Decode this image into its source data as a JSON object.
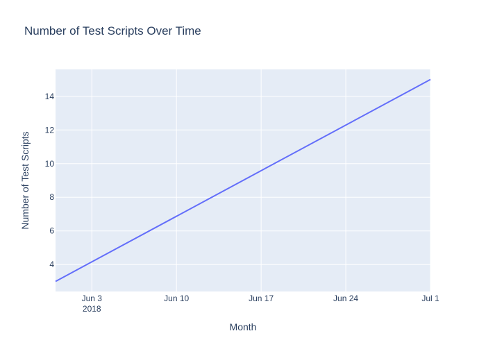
{
  "chart_data": {
    "type": "line",
    "title": "Number of Test Scripts Over Time",
    "xlabel": "Month",
    "ylabel": "Number of Test Scripts",
    "x_type": "date",
    "xlim": [
      "2018-05-31",
      "2018-07-01"
    ],
    "ylim": [
      2.4,
      15.6
    ],
    "x_ticks": [
      {
        "date": "2018-06-03",
        "label": "Jun 3",
        "sublabel": "2018"
      },
      {
        "date": "2018-06-10",
        "label": "Jun 10",
        "sublabel": ""
      },
      {
        "date": "2018-06-17",
        "label": "Jun 17",
        "sublabel": ""
      },
      {
        "date": "2018-06-24",
        "label": "Jun 24",
        "sublabel": ""
      },
      {
        "date": "2018-07-01",
        "label": "Jul 1",
        "sublabel": ""
      }
    ],
    "y_ticks": [
      4,
      6,
      8,
      10,
      12,
      14
    ],
    "series": [
      {
        "color": "#636efa",
        "x": [
          "2018-05-31",
          "2018-07-01"
        ],
        "y": [
          3,
          15
        ]
      }
    ],
    "grid": true,
    "colors": {
      "plot_background": "#e5ecf6",
      "grid": "#ffffff",
      "text": "#2a3f5f"
    }
  }
}
